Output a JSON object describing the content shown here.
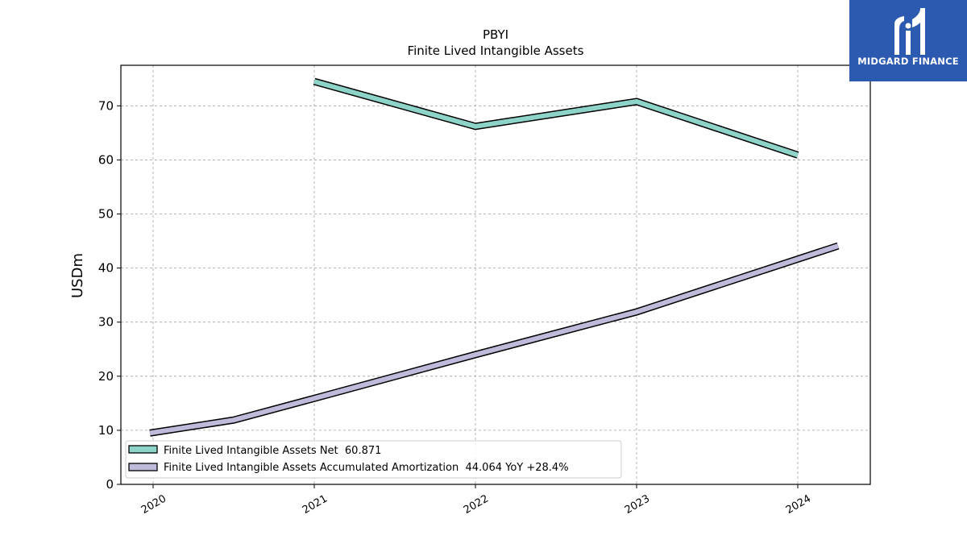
{
  "chart_data": {
    "type": "line",
    "title": "PBYI",
    "subtitle": "Finite Lived Intangible Assets",
    "ylabel": "USDm",
    "xlabel": "",
    "xlim": [
      2019.8,
      2024.45
    ],
    "ylim": [
      0,
      77.5
    ],
    "yticks": [
      0,
      10,
      20,
      30,
      40,
      50,
      60,
      70
    ],
    "xticks": [
      "2020",
      "2021",
      "2022",
      "2023",
      "2024"
    ],
    "grid": true,
    "legend_position": "lower-left",
    "series": [
      {
        "name": "Finite Lived Intangible Assets Net",
        "legend_label": "Finite Lived Intangible Assets Net  60.871",
        "color": "#8dd3c7",
        "points": [
          [
            2021.0,
            74.5
          ],
          [
            2022.0,
            66.2
          ],
          [
            2023.0,
            70.8
          ],
          [
            2024.0,
            60.9
          ]
        ]
      },
      {
        "name": "Finite Lived Intangible Assets Accumulated Amortization",
        "legend_label": "Finite Lived Intangible Assets Accumulated Amortization  44.064 YoY +28.4%",
        "color": "#bebada",
        "points": [
          [
            2019.98,
            9.5
          ],
          [
            2020.5,
            11.9
          ],
          [
            2021.0,
            15.9
          ],
          [
            2022.0,
            24.0
          ],
          [
            2023.0,
            31.9
          ],
          [
            2024.25,
            44.1
          ]
        ]
      }
    ]
  },
  "logo": {
    "text": "MIDGARD FINANCE",
    "bg_color": "#2c5ab0"
  }
}
